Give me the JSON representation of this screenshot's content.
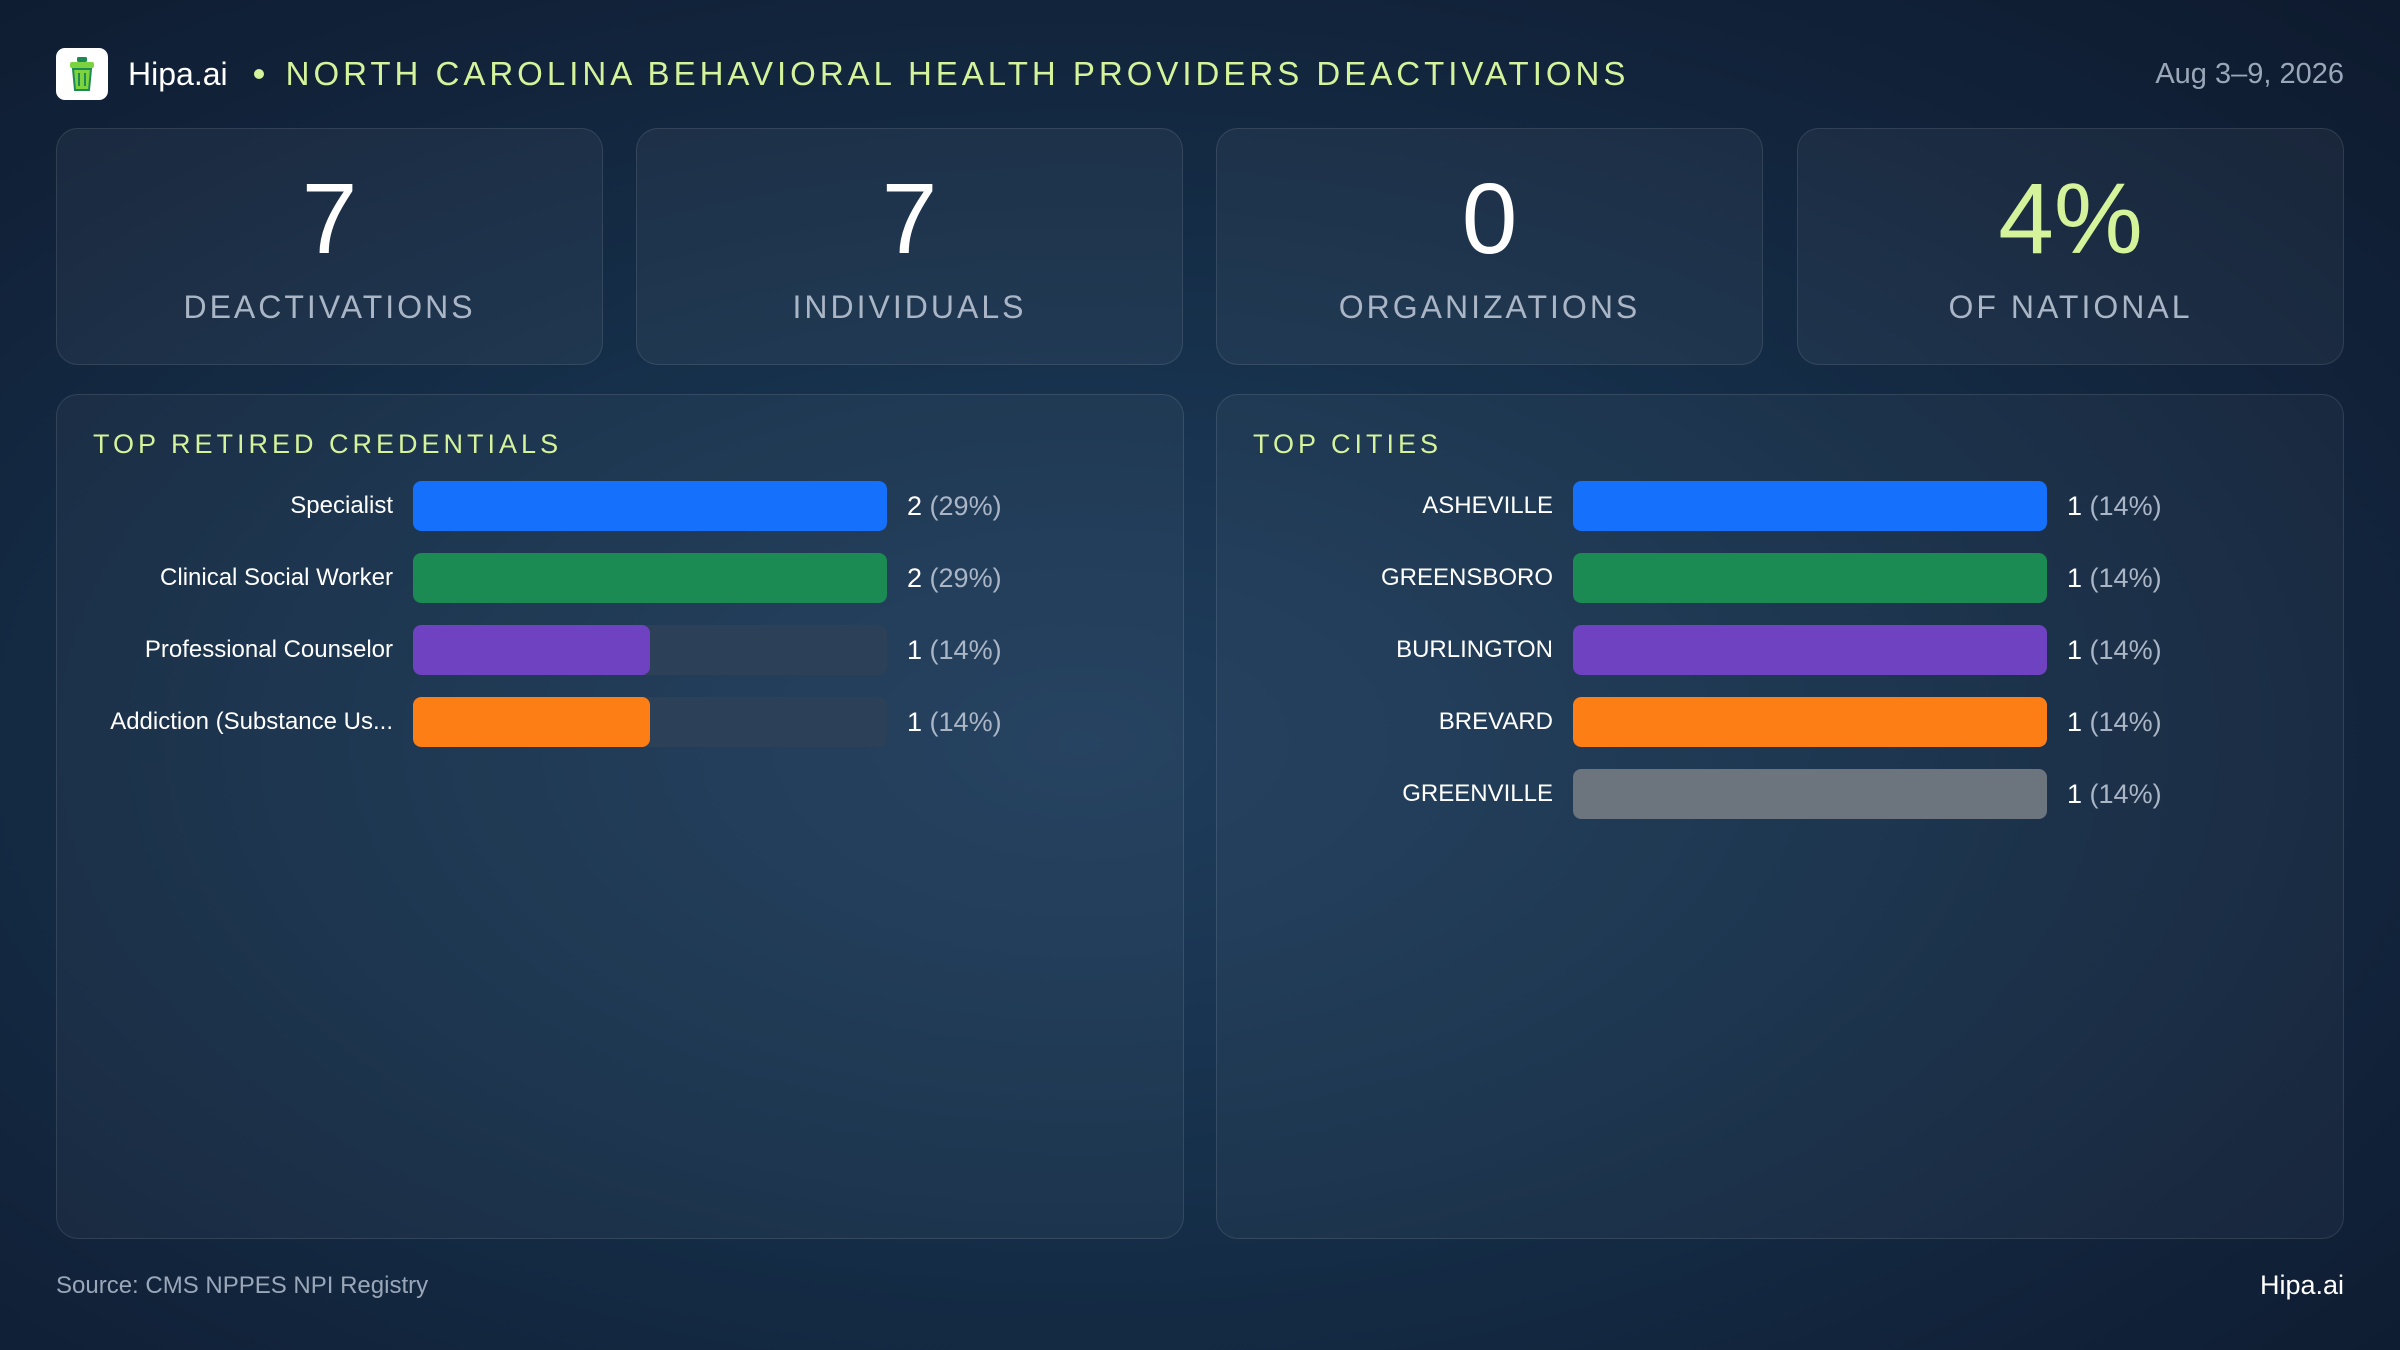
{
  "header": {
    "brand": "Hipa.ai",
    "title": "NORTH CAROLINA BEHAVIORAL HEALTH PROVIDERS DEACTIVATIONS",
    "date_range": "Aug 3–9, 2026"
  },
  "stats": [
    {
      "value": "7",
      "label": "DEACTIVATIONS"
    },
    {
      "value": "7",
      "label": "INDIVIDUALS"
    },
    {
      "value": "0",
      "label": "ORGANIZATIONS"
    },
    {
      "value": "4%",
      "label": "OF NATIONAL"
    }
  ],
  "colors": {
    "accent": "#d4f39b",
    "blue": "#1570fc",
    "green": "#1b8a53",
    "purple": "#6f42c1",
    "orange": "#fd7e14",
    "gray": "#6c757d",
    "track": "#2c4058"
  },
  "chart_data": [
    {
      "type": "bar",
      "orientation": "horizontal",
      "title": "TOP RETIRED CREDENTIALS",
      "categories": [
        "Specialist",
        "Clinical Social Worker",
        "Professional Counselor",
        "Addiction (Substance Us..."
      ],
      "values": [
        2,
        2,
        1,
        1
      ],
      "percent_labels": [
        "(29%)",
        "(29%)",
        "(14%)",
        "(14%)"
      ],
      "bar_colors": [
        "#1570fc",
        "#1b8a53",
        "#6f42c1",
        "#fd7e14"
      ],
      "xlim": [
        0,
        2
      ],
      "grid": false
    },
    {
      "type": "bar",
      "orientation": "horizontal",
      "title": "TOP CITIES",
      "categories": [
        "ASHEVILLE",
        "GREENSBORO",
        "BURLINGTON",
        "BREVARD",
        "GREENVILLE"
      ],
      "values": [
        1,
        1,
        1,
        1,
        1
      ],
      "percent_labels": [
        "(14%)",
        "(14%)",
        "(14%)",
        "(14%)",
        "(14%)"
      ],
      "bar_colors": [
        "#1570fc",
        "#1b8a53",
        "#6f42c1",
        "#fd7e14",
        "#6c757d"
      ],
      "xlim": [
        0,
        1
      ],
      "grid": false
    }
  ],
  "footer": {
    "source": "Source: CMS NPPES NPI Registry",
    "brand": "Hipa.ai"
  }
}
